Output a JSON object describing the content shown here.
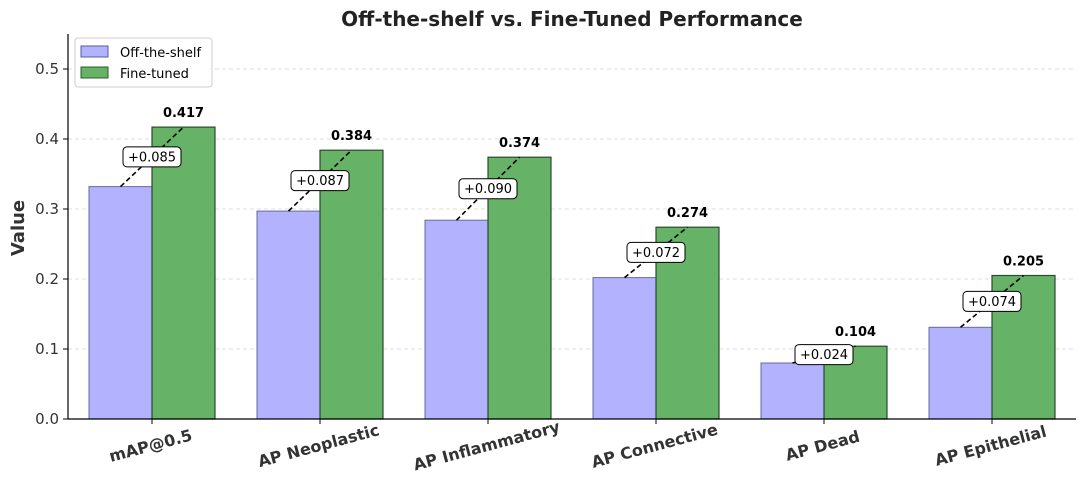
{
  "chart_data": {
    "type": "bar",
    "title": "Off-the-shelf vs. Fine-Tuned Performance",
    "xlabel": "",
    "ylabel": "Value",
    "ylim": [
      0,
      0.55
    ],
    "yticks": [
      "0.0",
      "0.1",
      "0.2",
      "0.3",
      "0.4",
      "0.5"
    ],
    "grid": true,
    "legend_position": "top-left",
    "categories": [
      "mAP@0.5",
      "AP Neoplastic",
      "AP Inflammatory",
      "AP Connective",
      "AP Dead",
      "AP Epithelial"
    ],
    "series": [
      {
        "name": "Off-the-shelf",
        "color": "#b2b2ff",
        "values": [
          0.332,
          0.297,
          0.284,
          0.202,
          0.08,
          0.131
        ]
      },
      {
        "name": "Fine-tuned",
        "color": "#66b266",
        "values": [
          0.417,
          0.384,
          0.374,
          0.274,
          0.104,
          0.205
        ]
      }
    ],
    "value_labels": [
      "0.417",
      "0.384",
      "0.374",
      "0.274",
      "0.104",
      "0.205"
    ],
    "improvement_labels": [
      "+0.085",
      "+0.087",
      "+0.090",
      "+0.072",
      "+0.024",
      "+0.074"
    ]
  }
}
